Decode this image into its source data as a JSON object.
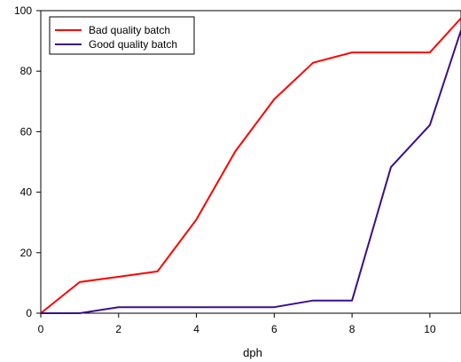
{
  "chart_data": {
    "type": "line",
    "title": "",
    "xlabel": "dph",
    "ylabel": "",
    "xlim": [
      0,
      10.8
    ],
    "ylim": [
      0,
      100
    ],
    "xticks": [
      0,
      2,
      4,
      6,
      8,
      10
    ],
    "yticks": [
      0,
      20,
      40,
      60,
      80,
      100
    ],
    "grid": false,
    "legend_position": "top-left",
    "series": [
      {
        "name": "Bad quality batch",
        "color": "#ff0000",
        "points": [
          [
            0,
            0
          ],
          [
            1,
            10.3
          ],
          [
            3,
            13.8
          ],
          [
            4,
            31
          ],
          [
            5,
            53.5
          ],
          [
            6,
            70.7
          ],
          [
            7,
            82.8
          ],
          [
            8,
            86.2
          ],
          [
            10,
            86.2
          ],
          [
            10.8,
            97.5
          ]
        ]
      },
      {
        "name": "Good quality batch",
        "color": "#3a0e8e",
        "points": [
          [
            0,
            0
          ],
          [
            1,
            0
          ],
          [
            2,
            2
          ],
          [
            6,
            2
          ],
          [
            7,
            4.2
          ],
          [
            8,
            4.2
          ],
          [
            9,
            48.3
          ],
          [
            10,
            62.2
          ],
          [
            10.8,
            93.5
          ]
        ]
      }
    ]
  }
}
